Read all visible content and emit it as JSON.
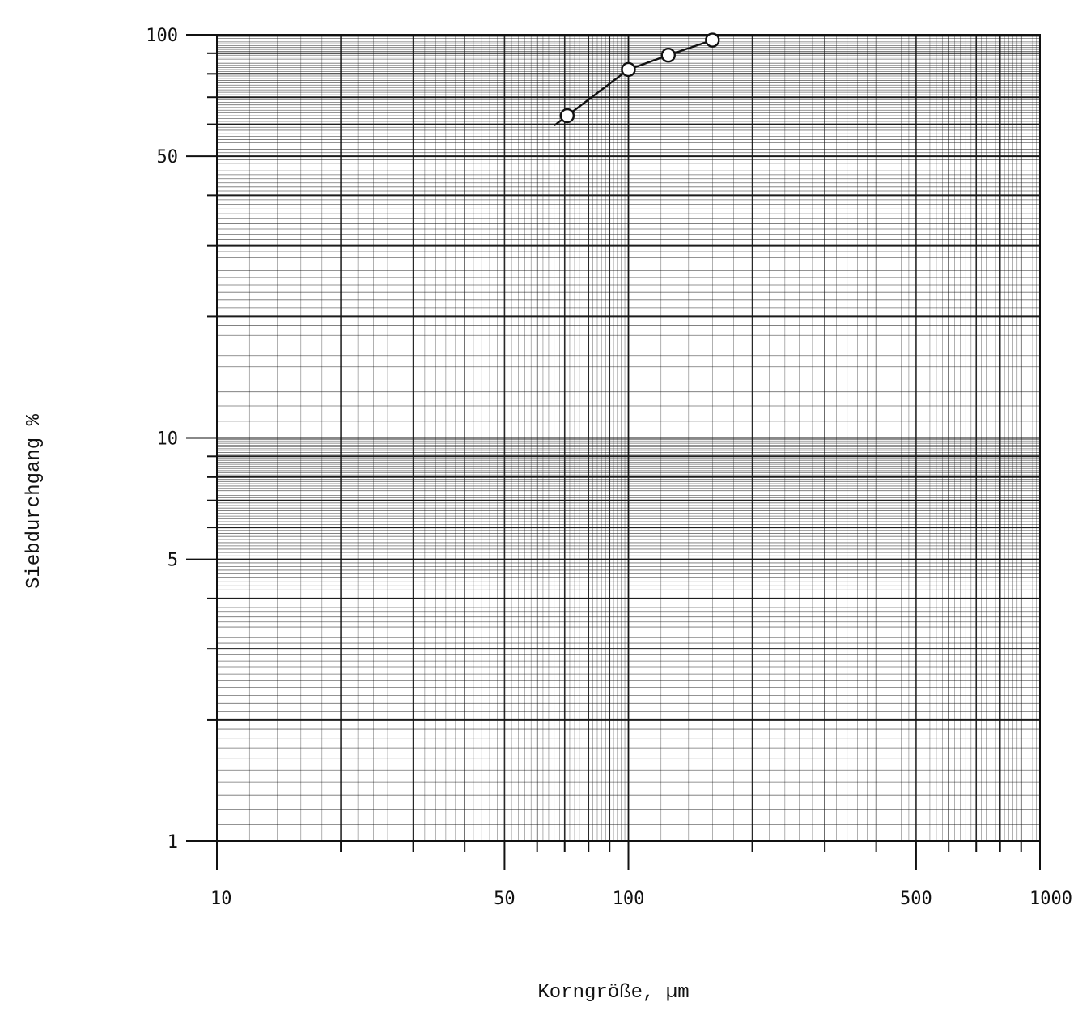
{
  "chart_data": {
    "type": "line",
    "xlabel": "Korngröße, µm",
    "ylabel": "Siebdurchgang %",
    "x_scale": "log",
    "y_scale": "log",
    "xlim": [
      10,
      1000
    ],
    "ylim": [
      1,
      100
    ],
    "grid": true,
    "x_tick_labels": [
      "10",
      "50",
      "100",
      "500",
      "1000"
    ],
    "x_tick_values": [
      10,
      50,
      100,
      500,
      1000
    ],
    "y_tick_labels": [
      "100",
      "50",
      "10",
      "5",
      "1"
    ],
    "y_tick_values": [
      100,
      50,
      10,
      5,
      1
    ],
    "series": [
      {
        "x": [
          71,
          100,
          125,
          160
        ],
        "y": [
          63,
          82,
          89,
          97
        ],
        "marker": "open-circle"
      }
    ],
    "line_color": "#111111"
  }
}
